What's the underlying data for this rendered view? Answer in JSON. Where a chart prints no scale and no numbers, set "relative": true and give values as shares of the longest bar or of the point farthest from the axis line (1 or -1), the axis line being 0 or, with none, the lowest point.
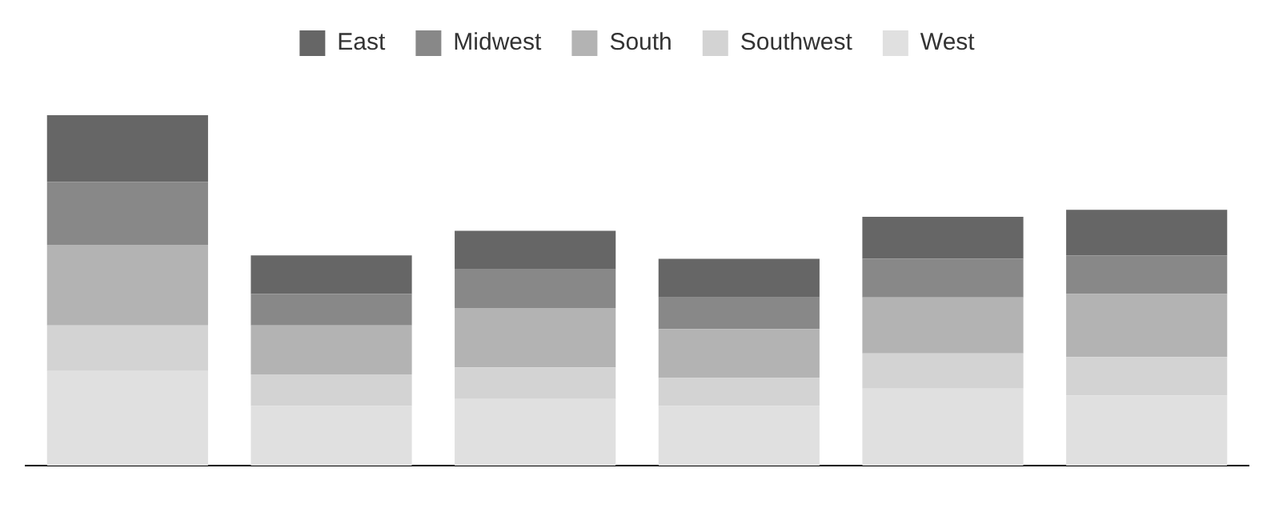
{
  "chart_data": {
    "type": "bar",
    "stacked": true,
    "relative": true,
    "legend": "top",
    "grid": false,
    "categories": [
      null,
      null,
      null,
      null,
      null,
      null
    ],
    "series": [
      {
        "name": "West",
        "color": "#e0e0e0",
        "values": [
          0.27,
          0.17,
          0.19,
          0.17,
          0.22,
          0.2
        ]
      },
      {
        "name": "Southwest",
        "color": "#d3d3d3",
        "values": [
          0.13,
          0.09,
          0.09,
          0.08,
          0.1,
          0.11
        ]
      },
      {
        "name": "South",
        "color": "#b3b3b3",
        "values": [
          0.23,
          0.14,
          0.17,
          0.14,
          0.16,
          0.18
        ]
      },
      {
        "name": "Midwest",
        "color": "#888888",
        "values": [
          0.18,
          0.09,
          0.11,
          0.09,
          0.11,
          0.11
        ]
      },
      {
        "name": "East",
        "color": "#666666",
        "values": [
          0.19,
          0.11,
          0.11,
          0.11,
          0.12,
          0.13
        ]
      }
    ]
  }
}
